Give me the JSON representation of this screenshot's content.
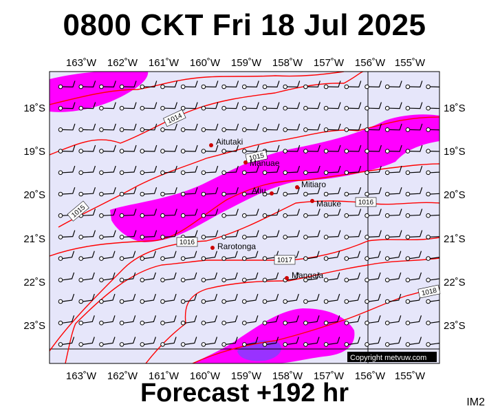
{
  "header": {
    "title": "0800 CKT Fri 18 Jul 2025"
  },
  "footer": {
    "forecast": "Forecast +192 hr",
    "code": "IM2"
  },
  "map": {
    "lon_labels": [
      "163˚W",
      "162˚W",
      "161˚W",
      "160˚W",
      "159˚W",
      "158˚W",
      "157˚W",
      "156˚W",
      "155˚W"
    ],
    "lat_labels": [
      "18˚S",
      "19˚S",
      "20˚S",
      "21˚S",
      "22˚S",
      "23˚S"
    ],
    "isobar_labels": [
      "1014",
      "1015",
      "1015",
      "1016",
      "1016",
      "1017",
      "1018"
    ],
    "places": [
      "Aitutaki",
      "Manuae",
      "Mitiaro",
      "Atiu",
      "Mauke",
      "Rarotonga",
      "Mangaia"
    ],
    "copyright": "Copyright metvuw.com",
    "colors": {
      "background": "#e6e6fa",
      "rain_light": "#ff00ff",
      "rain_heavy": "#9932ff",
      "isobar": "#ff0000",
      "place_dot": "#cc0000"
    }
  }
}
